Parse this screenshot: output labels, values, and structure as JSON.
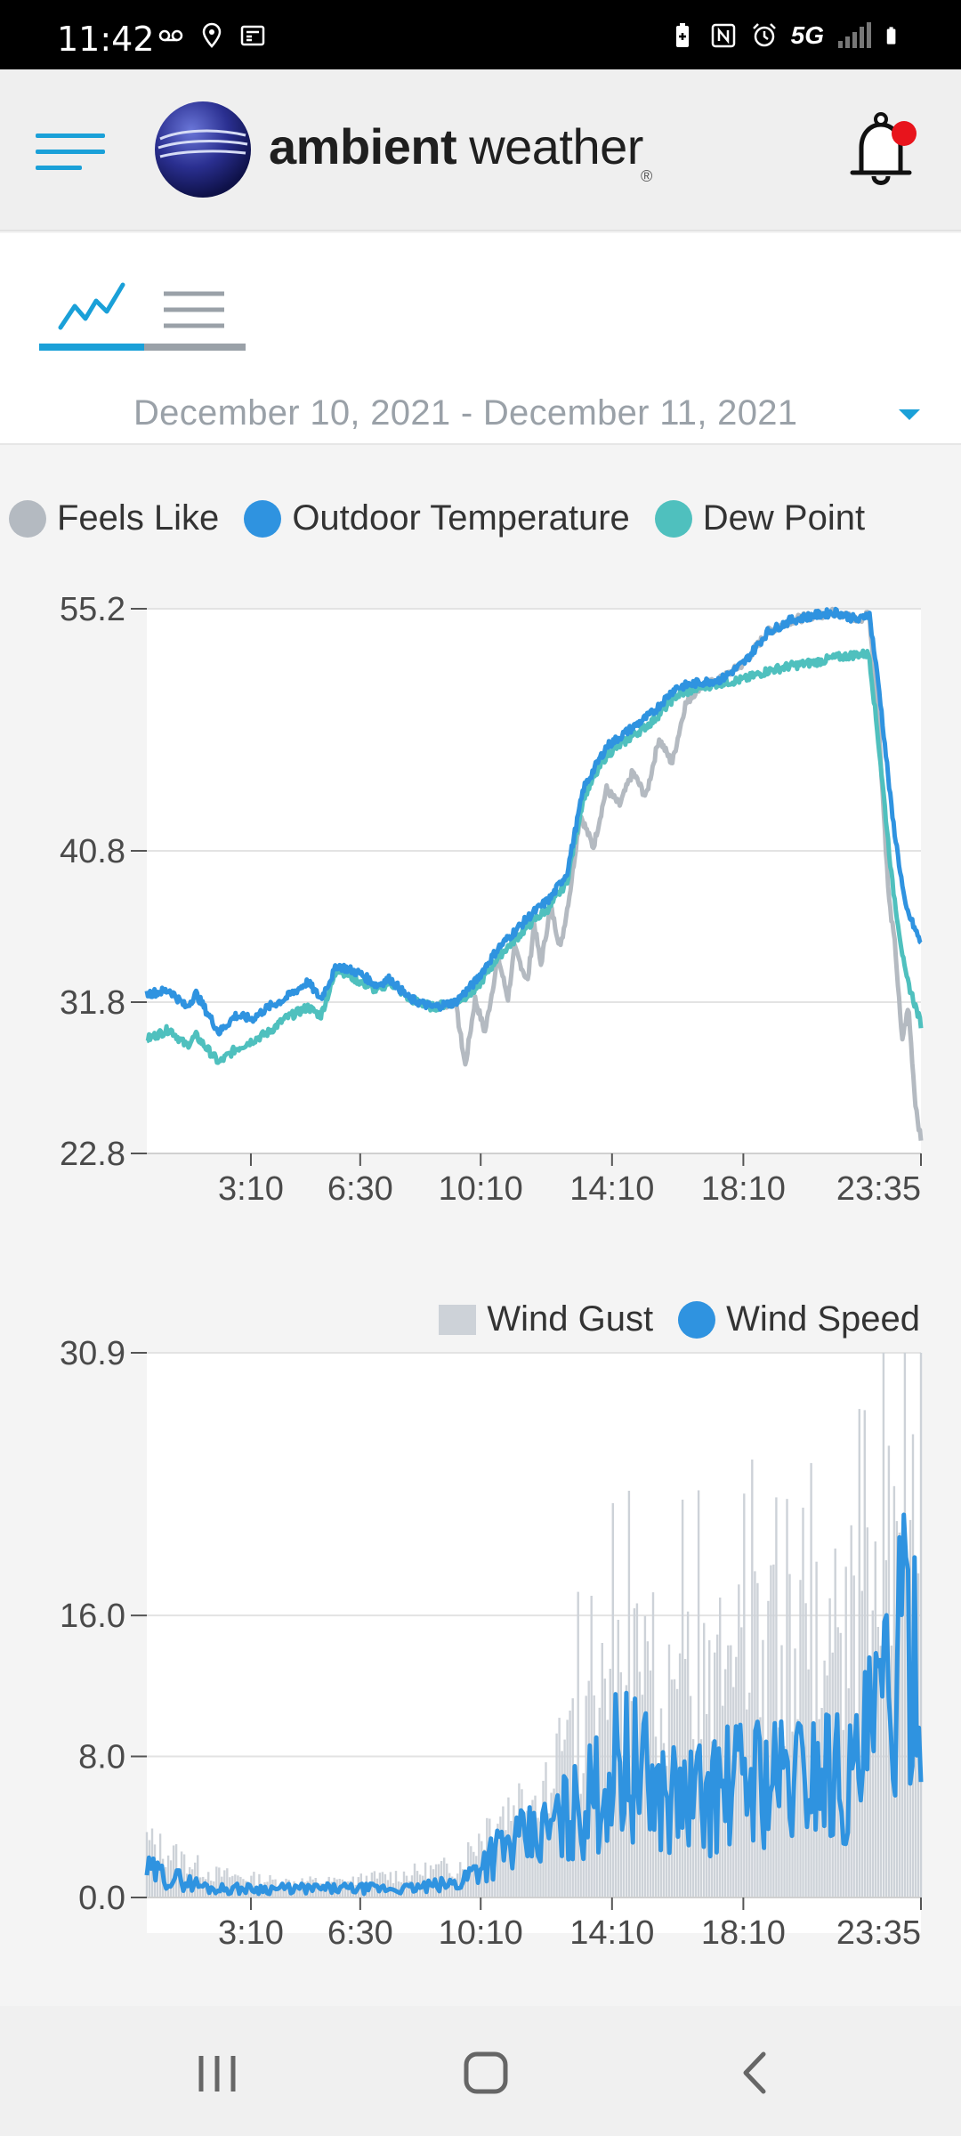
{
  "status_bar": {
    "time": "11:42",
    "network": "5G"
  },
  "header": {
    "brand_bold": "ambient",
    "brand_light": "weather",
    "registered": "®",
    "notification_dot_color": "#e8141c",
    "accent_color": "#1aa0d8"
  },
  "tabs": [
    {
      "name": "chart",
      "icon": "line-chart-icon",
      "active": true
    },
    {
      "name": "list",
      "icon": "list-icon",
      "active": false
    }
  ],
  "date_range": "December 10, 2021 - December 11, 2021",
  "temp_chart": {
    "legend": [
      {
        "label": "Feels Like",
        "color": "#b4bac1"
      },
      {
        "label": "Outdoor Temperature",
        "color": "#2f93e0"
      },
      {
        "label": "Dew Point",
        "color": "#4fc0be"
      }
    ],
    "y_ticks": [
      "55.2",
      "40.8",
      "31.8",
      "22.8"
    ],
    "x_ticks": [
      "3:10",
      "6:30",
      "10:10",
      "14:10",
      "18:10",
      "23:35"
    ]
  },
  "wind_chart": {
    "legend": [
      {
        "label": "Wind Gust",
        "color": "#cdd2d8"
      },
      {
        "label": "Wind Speed",
        "color": "#2f93e0"
      }
    ],
    "y_ticks": [
      "30.9",
      "16.0",
      "8.0",
      "0.0"
    ],
    "x_ticks": [
      "3:10",
      "6:30",
      "10:10",
      "14:10",
      "18:10",
      "23:35"
    ]
  },
  "chart_data": [
    {
      "type": "line",
      "ylim": [
        22.8,
        55.2
      ],
      "x_unit": "hour of day",
      "xticks": [
        {
          "label": "3:10",
          "x": 3.17
        },
        {
          "label": "6:30",
          "x": 6.5
        },
        {
          "label": "10:10",
          "x": 10.17
        },
        {
          "label": "14:10",
          "x": 14.17
        },
        {
          "label": "18:10",
          "x": 18.17
        },
        {
          "label": "23:35",
          "x": 23.58
        }
      ],
      "series": [
        {
          "name": "Outdoor Temperature",
          "color": "#2f93e0",
          "points": [
            [
              0,
              32.3
            ],
            [
              0.7,
              32.5
            ],
            [
              1.2,
              31.5
            ],
            [
              1.5,
              32.3
            ],
            [
              2.2,
              30.0
            ],
            [
              2.7,
              31.0
            ],
            [
              3.2,
              30.8
            ],
            [
              3.7,
              31.5
            ],
            [
              4.2,
              32.0
            ],
            [
              4.9,
              33.0
            ],
            [
              5.3,
              32.0
            ],
            [
              5.8,
              34.0
            ],
            [
              6.5,
              33.5
            ],
            [
              7.0,
              32.8
            ],
            [
              7.4,
              33.2
            ],
            [
              8.0,
              32.0
            ],
            [
              8.7,
              31.5
            ],
            [
              9.4,
              31.8
            ],
            [
              10.0,
              33.0
            ],
            [
              10.7,
              35.0
            ],
            [
              11.2,
              36.0
            ],
            [
              11.7,
              37.0
            ],
            [
              12.3,
              38.0
            ],
            [
              12.8,
              39.5
            ],
            [
              13.3,
              44.5
            ],
            [
              14.0,
              47.0
            ],
            [
              14.7,
              48.0
            ],
            [
              15.4,
              49.0
            ],
            [
              16.1,
              50.5
            ],
            [
              16.8,
              50.8
            ],
            [
              17.5,
              51.0
            ],
            [
              18.2,
              52.0
            ],
            [
              18.9,
              53.8
            ],
            [
              19.6,
              54.5
            ],
            [
              20.3,
              54.8
            ],
            [
              21.0,
              55.0
            ],
            [
              21.7,
              54.5
            ],
            [
              22.0,
              55.0
            ],
            [
              22.3,
              50.5
            ],
            [
              22.7,
              43.0
            ],
            [
              23.1,
              37.5
            ],
            [
              23.58,
              35.3
            ]
          ]
        },
        {
          "name": "Dew Point",
          "color": "#4fc0be",
          "points": [
            [
              0,
              29.6
            ],
            [
              0.7,
              30.2
            ],
            [
              1.2,
              29.2
            ],
            [
              1.5,
              29.8
            ],
            [
              2.2,
              28.2
            ],
            [
              2.7,
              29.0
            ],
            [
              3.2,
              29.5
            ],
            [
              3.7,
              30.0
            ],
            [
              4.2,
              30.8
            ],
            [
              4.9,
              31.5
            ],
            [
              5.3,
              31.0
            ],
            [
              5.8,
              33.8
            ],
            [
              6.5,
              33.0
            ],
            [
              7.0,
              32.5
            ],
            [
              7.4,
              33.0
            ],
            [
              8.0,
              32.0
            ],
            [
              8.7,
              31.5
            ],
            [
              9.4,
              31.8
            ],
            [
              10.0,
              32.5
            ],
            [
              10.7,
              34.5
            ],
            [
              11.2,
              35.5
            ],
            [
              11.7,
              36.5
            ],
            [
              12.3,
              37.5
            ],
            [
              12.8,
              39.0
            ],
            [
              13.3,
              44.0
            ],
            [
              14.0,
              46.5
            ],
            [
              14.7,
              47.5
            ],
            [
              15.4,
              48.5
            ],
            [
              16.1,
              50.0
            ],
            [
              16.8,
              50.5
            ],
            [
              17.5,
              50.8
            ],
            [
              18.2,
              51.0
            ],
            [
              18.9,
              51.5
            ],
            [
              19.6,
              51.8
            ],
            [
              20.3,
              52.0
            ],
            [
              21.0,
              52.3
            ],
            [
              21.7,
              52.5
            ],
            [
              22.0,
              52.5
            ],
            [
              22.3,
              47.0
            ],
            [
              22.7,
              39.0
            ],
            [
              23.1,
              33.5
            ],
            [
              23.58,
              30.5
            ]
          ]
        },
        {
          "name": "Feels Like",
          "color": "#b4bac1",
          "points": [
            [
              8.7,
              31.5
            ],
            [
              9.4,
              31.8
            ],
            [
              9.7,
              28.0
            ],
            [
              10.0,
              32.0
            ],
            [
              10.3,
              30.0
            ],
            [
              10.7,
              34.5
            ],
            [
              11.0,
              32.0
            ],
            [
              11.2,
              35.0
            ],
            [
              11.6,
              33.0
            ],
            [
              11.8,
              36.5
            ],
            [
              12.0,
              34.0
            ],
            [
              12.3,
              37.5
            ],
            [
              12.6,
              35.0
            ],
            [
              12.9,
              38.5
            ],
            [
              13.2,
              43.0
            ],
            [
              13.6,
              41.0
            ],
            [
              14.0,
              44.5
            ],
            [
              14.4,
              43.5
            ],
            [
              14.8,
              45.5
            ],
            [
              15.2,
              44.0
            ],
            [
              15.6,
              47.5
            ],
            [
              16.0,
              46.0
            ],
            [
              16.4,
              49.5
            ],
            [
              16.8,
              50.5
            ],
            [
              17.5,
              51.0
            ],
            [
              18.2,
              52.0
            ],
            [
              18.9,
              53.8
            ],
            [
              19.6,
              54.5
            ],
            [
              20.3,
              54.8
            ],
            [
              21.0,
              55.0
            ],
            [
              21.7,
              54.5
            ],
            [
              22.0,
              55.0
            ],
            [
              22.3,
              48.0
            ],
            [
              22.6,
              38.0
            ],
            [
              22.8,
              35.0
            ],
            [
              23.0,
              29.5
            ],
            [
              23.2,
              31.5
            ],
            [
              23.4,
              26.0
            ],
            [
              23.58,
              23.5
            ]
          ]
        }
      ]
    },
    {
      "type": "bar+line",
      "ylim": [
        0,
        30.9
      ],
      "x_unit": "hour of day",
      "xticks": [
        {
          "label": "3:10",
          "x": 3.17
        },
        {
          "label": "6:30",
          "x": 6.5
        },
        {
          "label": "10:10",
          "x": 10.17
        },
        {
          "label": "14:10",
          "x": 14.17
        },
        {
          "label": "18:10",
          "x": 18.17
        },
        {
          "label": "23:35",
          "x": 23.58
        }
      ],
      "series": [
        {
          "name": "Wind Gust",
          "type": "bar",
          "color": "#cdd2d8",
          "envelope": [
            [
              0,
              3.5
            ],
            [
              2,
              1.5
            ],
            [
              4,
              1.0
            ],
            [
              6,
              1.0
            ],
            [
              8,
              1.5
            ],
            [
              9.5,
              2.0
            ],
            [
              10.5,
              5.0
            ],
            [
              12,
              7.0
            ],
            [
              13.5,
              10.5
            ],
            [
              14.5,
              14.0
            ],
            [
              15.5,
              13.0
            ],
            [
              16.5,
              13.0
            ],
            [
              17.5,
              14.0
            ],
            [
              18.5,
              15.0
            ],
            [
              19.5,
              15.5
            ],
            [
              20.5,
              15.5
            ],
            [
              21.5,
              17.0
            ],
            [
              22.5,
              19.0
            ],
            [
              23.58,
              22.0
            ]
          ]
        },
        {
          "name": "Wind Speed",
          "type": "line",
          "color": "#2f93e0",
          "envelope": [
            [
              0,
              1.5
            ],
            [
              2,
              0.5
            ],
            [
              4,
              0.5
            ],
            [
              6,
              0.5
            ],
            [
              8,
              0.5
            ],
            [
              9.5,
              0.8
            ],
            [
              10.5,
              2.5
            ],
            [
              12,
              3.5
            ],
            [
              13.5,
              5.5
            ],
            [
              14.5,
              8.0
            ],
            [
              15.5,
              6.0
            ],
            [
              16.5,
              5.5
            ],
            [
              17.5,
              6.0
            ],
            [
              18.5,
              7.0
            ],
            [
              19.5,
              6.5
            ],
            [
              20.5,
              7.5
            ],
            [
              21.5,
              6.5
            ],
            [
              22.5,
              11.0
            ],
            [
              23.58,
              16.0
            ]
          ]
        }
      ]
    }
  ]
}
